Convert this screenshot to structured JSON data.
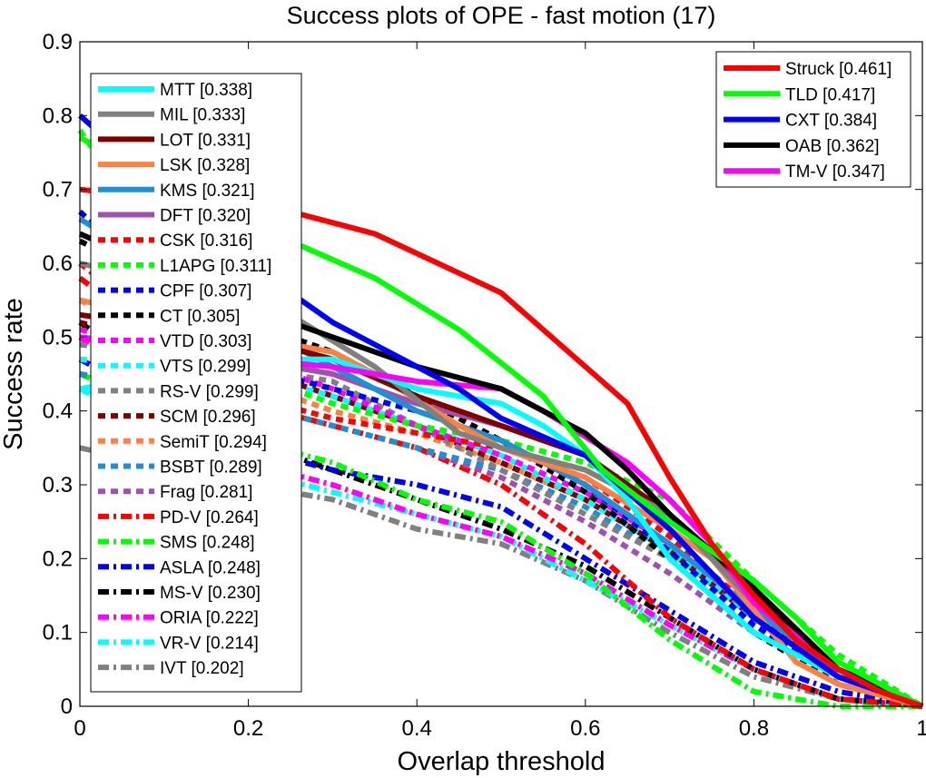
{
  "chart_data": {
    "type": "line",
    "title": "Success plots of OPE - fast motion (17)",
    "xlabel": "Overlap threshold",
    "ylabel": "Success rate",
    "xlim": [
      0,
      1
    ],
    "ylim": [
      0,
      0.9
    ],
    "x_ticks": [
      "0",
      "0.2",
      "0.4",
      "0.6",
      "0.8",
      "1"
    ],
    "y_ticks": [
      "0",
      "0.1",
      "0.2",
      "0.3",
      "0.4",
      "0.5",
      "0.6",
      "0.7",
      "0.8",
      "0.9"
    ],
    "grid": false,
    "legends": [
      {
        "placement": "top-right",
        "series": [
          "Struck [0.461]",
          "TLD [0.417]",
          "CXT [0.384]",
          "OAB [0.362]",
          "TM-V [0.347]"
        ]
      },
      {
        "placement": "left",
        "series": [
          "MTT [0.338]",
          "MIL [0.333]",
          "LOT [0.331]",
          "LSK [0.328]",
          "KMS [0.321]",
          "DFT [0.320]",
          "CSK [0.316]",
          "L1APG [0.311]",
          "CPF [0.307]",
          "CT [0.305]",
          "VTD [0.303]",
          "VTS [0.299]",
          "RS-V [0.299]",
          "SCM [0.296]",
          "SemiT [0.294]",
          "BSBT [0.289]",
          "Frag [0.281]",
          "PD-V [0.264]",
          "SMS [0.248]",
          "ASLA [0.248]",
          "MS-V [0.230]",
          "ORIA [0.222]",
          "VR-V [0.214]",
          "IVT [0.202]"
        ]
      }
    ],
    "series": [
      {
        "name": "Struck [0.461]",
        "color": "#ff0000",
        "style": "solid",
        "x": [
          0,
          0.25,
          0.35,
          0.5,
          0.6,
          0.65,
          0.7,
          0.75,
          0.8,
          0.85,
          0.9,
          0.95,
          1
        ],
        "y": [
          0.7,
          0.67,
          0.64,
          0.56,
          0.46,
          0.41,
          0.31,
          0.22,
          0.15,
          0.09,
          0.05,
          0.02,
          0
        ]
      },
      {
        "name": "TLD [0.417]",
        "color": "#00ff00",
        "style": "solid",
        "x": [
          0,
          0.25,
          0.35,
          0.45,
          0.55,
          0.62,
          0.7,
          0.75,
          0.8,
          0.85,
          0.9,
          0.95,
          1
        ],
        "y": [
          0.77,
          0.63,
          0.58,
          0.51,
          0.42,
          0.32,
          0.25,
          0.21,
          0.17,
          0.12,
          0.06,
          0.03,
          0
        ]
      },
      {
        "name": "CXT [0.384]",
        "color": "#0000ff",
        "style": "solid",
        "x": [
          0,
          0.2,
          0.3,
          0.35,
          0.45,
          0.5,
          0.6,
          0.7,
          0.8,
          0.9,
          1
        ],
        "y": [
          0.8,
          0.6,
          0.52,
          0.49,
          0.43,
          0.39,
          0.34,
          0.24,
          0.12,
          0.04,
          0
        ]
      },
      {
        "name": "OAB [0.362]",
        "color": "#000000",
        "style": "solid",
        "x": [
          0,
          0.2,
          0.3,
          0.4,
          0.5,
          0.6,
          0.65,
          0.7,
          0.8,
          0.9,
          1
        ],
        "y": [
          0.64,
          0.54,
          0.5,
          0.46,
          0.43,
          0.37,
          0.32,
          0.26,
          0.16,
          0.05,
          0
        ]
      },
      {
        "name": "TM-V [0.347]",
        "color": "#ff00ff",
        "style": "solid",
        "x": [
          0,
          0.2,
          0.3,
          0.4,
          0.5,
          0.55,
          0.65,
          0.7,
          0.75,
          0.8,
          0.9,
          1
        ],
        "y": [
          0.5,
          0.47,
          0.46,
          0.44,
          0.43,
          0.4,
          0.33,
          0.28,
          0.22,
          0.14,
          0.05,
          0
        ]
      },
      {
        "name": "MTT [0.338]",
        "color": "#00ffff",
        "style": "solid",
        "x": [
          0,
          0.2,
          0.3,
          0.4,
          0.5,
          0.55,
          0.6,
          0.65,
          0.7,
          0.8,
          0.9,
          1
        ],
        "y": [
          0.43,
          0.47,
          0.47,
          0.43,
          0.41,
          0.38,
          0.34,
          0.28,
          0.2,
          0.1,
          0.04,
          0
        ]
      },
      {
        "name": "MIL [0.333]",
        "color": "#808080",
        "style": "solid",
        "x": [
          0,
          0.15,
          0.25,
          0.35,
          0.45,
          0.5,
          0.6,
          0.65,
          0.7,
          0.8,
          0.9,
          1
        ],
        "y": [
          0.6,
          0.56,
          0.53,
          0.46,
          0.37,
          0.35,
          0.32,
          0.29,
          0.26,
          0.14,
          0.05,
          0
        ]
      },
      {
        "name": "LOT [0.331]",
        "color": "#800000",
        "style": "solid",
        "x": [
          0,
          0.2,
          0.3,
          0.4,
          0.5,
          0.6,
          0.7,
          0.8,
          0.85,
          0.9,
          1
        ],
        "y": [
          0.53,
          0.5,
          0.47,
          0.42,
          0.38,
          0.34,
          0.26,
          0.15,
          0.1,
          0.05,
          0
        ]
      },
      {
        "name": "LSK [0.328]",
        "color": "#ff8040",
        "style": "solid",
        "x": [
          0,
          0.2,
          0.3,
          0.35,
          0.45,
          0.5,
          0.6,
          0.7,
          0.75,
          0.8,
          0.85,
          0.9,
          1
        ],
        "y": [
          0.55,
          0.5,
          0.48,
          0.45,
          0.38,
          0.35,
          0.31,
          0.24,
          0.2,
          0.13,
          0.06,
          0.03,
          0
        ]
      },
      {
        "name": "KMS [0.321]",
        "color": "#1e90d8",
        "style": "solid",
        "x": [
          0,
          0.2,
          0.3,
          0.4,
          0.5,
          0.6,
          0.7,
          0.8,
          0.9,
          1
        ],
        "y": [
          0.66,
          0.52,
          0.46,
          0.4,
          0.36,
          0.3,
          0.22,
          0.13,
          0.05,
          0
        ]
      },
      {
        "name": "DFT [0.320]",
        "color": "#a050b0",
        "style": "solid",
        "x": [
          0,
          0.2,
          0.3,
          0.4,
          0.5,
          0.6,
          0.7,
          0.8,
          0.9,
          1
        ],
        "y": [
          0.5,
          0.47,
          0.45,
          0.41,
          0.38,
          0.34,
          0.26,
          0.14,
          0.04,
          0
        ]
      },
      {
        "name": "CSK [0.316]",
        "color": "#ff0000",
        "style": "dashed",
        "x": [
          0,
          0.2,
          0.3,
          0.4,
          0.5,
          0.6,
          0.7,
          0.8,
          0.9,
          1
        ],
        "y": [
          0.6,
          0.42,
          0.39,
          0.37,
          0.35,
          0.31,
          0.23,
          0.13,
          0.04,
          0
        ]
      },
      {
        "name": "L1APG [0.311]",
        "color": "#00ff00",
        "style": "dashed",
        "x": [
          0,
          0.2,
          0.3,
          0.4,
          0.5,
          0.6,
          0.7,
          0.8,
          0.9,
          1
        ],
        "y": [
          0.78,
          0.45,
          0.41,
          0.38,
          0.36,
          0.33,
          0.28,
          0.17,
          0.07,
          0
        ]
      },
      {
        "name": "CPF [0.307]",
        "color": "#0000ff",
        "style": "dashed",
        "x": [
          0,
          0.2,
          0.3,
          0.4,
          0.5,
          0.6,
          0.7,
          0.8,
          0.9,
          1
        ],
        "y": [
          0.67,
          0.46,
          0.43,
          0.4,
          0.36,
          0.3,
          0.21,
          0.11,
          0.04,
          0
        ]
      },
      {
        "name": "CT [0.305]",
        "color": "#000000",
        "style": "dashed",
        "x": [
          0,
          0.2,
          0.3,
          0.4,
          0.5,
          0.6,
          0.7,
          0.8,
          0.9,
          1
        ],
        "y": [
          0.63,
          0.52,
          0.48,
          0.42,
          0.36,
          0.29,
          0.2,
          0.1,
          0.03,
          0
        ]
      },
      {
        "name": "VTD [0.303]",
        "color": "#ff00ff",
        "style": "dashed",
        "x": [
          0,
          0.2,
          0.3,
          0.4,
          0.5,
          0.6,
          0.7,
          0.8,
          0.9,
          1
        ],
        "y": [
          0.51,
          0.47,
          0.43,
          0.38,
          0.34,
          0.29,
          0.22,
          0.13,
          0.05,
          0
        ]
      },
      {
        "name": "VTS [0.299]",
        "color": "#00ffff",
        "style": "dashed",
        "x": [
          0,
          0.2,
          0.3,
          0.4,
          0.5,
          0.6,
          0.7,
          0.8,
          0.9,
          1
        ],
        "y": [
          0.47,
          0.45,
          0.42,
          0.38,
          0.34,
          0.28,
          0.21,
          0.12,
          0.04,
          0
        ]
      },
      {
        "name": "RS-V [0.299]",
        "color": "#808080",
        "style": "dashed",
        "x": [
          0,
          0.2,
          0.3,
          0.4,
          0.5,
          0.6,
          0.7,
          0.8,
          0.9,
          1
        ],
        "y": [
          0.49,
          0.46,
          0.44,
          0.38,
          0.32,
          0.26,
          0.2,
          0.12,
          0.05,
          0
        ]
      },
      {
        "name": "SCM [0.296]",
        "color": "#800000",
        "style": "dashed",
        "x": [
          0,
          0.2,
          0.3,
          0.4,
          0.5,
          0.6,
          0.7,
          0.8,
          0.9,
          1
        ],
        "y": [
          0.52,
          0.46,
          0.42,
          0.38,
          0.33,
          0.28,
          0.21,
          0.12,
          0.04,
          0
        ]
      },
      {
        "name": "SemiT [0.294]",
        "color": "#ff8040",
        "style": "dashed",
        "x": [
          0,
          0.2,
          0.3,
          0.4,
          0.5,
          0.6,
          0.7,
          0.8,
          0.9,
          1
        ],
        "y": [
          0.55,
          0.44,
          0.4,
          0.37,
          0.33,
          0.28,
          0.21,
          0.12,
          0.04,
          0
        ]
      },
      {
        "name": "BSBT [0.289]",
        "color": "#1e90d8",
        "style": "dashed",
        "x": [
          0,
          0.2,
          0.3,
          0.4,
          0.5,
          0.6,
          0.7,
          0.8,
          0.9,
          1
        ],
        "y": [
          0.45,
          0.41,
          0.38,
          0.35,
          0.32,
          0.27,
          0.2,
          0.12,
          0.05,
          0
        ]
      },
      {
        "name": "Frag [0.281]",
        "color": "#a050b0",
        "style": "dashed",
        "x": [
          0,
          0.2,
          0.3,
          0.4,
          0.5,
          0.6,
          0.7,
          0.8,
          0.9,
          1
        ],
        "y": [
          0.45,
          0.41,
          0.38,
          0.35,
          0.31,
          0.25,
          0.18,
          0.1,
          0.04,
          0
        ]
      },
      {
        "name": "PD-V [0.264]",
        "color": "#ff0000",
        "style": "dashdot",
        "x": [
          0,
          0.2,
          0.3,
          0.4,
          0.5,
          0.6,
          0.7,
          0.8,
          0.9,
          1
        ],
        "y": [
          0.58,
          0.41,
          0.38,
          0.35,
          0.3,
          0.22,
          0.12,
          0.05,
          0.01,
          0
        ]
      },
      {
        "name": "SMS [0.248]",
        "color": "#00ff00",
        "style": "dashdot",
        "x": [
          0,
          0.2,
          0.3,
          0.4,
          0.5,
          0.6,
          0.7,
          0.8,
          0.9,
          1
        ],
        "y": [
          0.45,
          0.36,
          0.33,
          0.28,
          0.25,
          0.18,
          0.09,
          0.02,
          0.0,
          0
        ]
      },
      {
        "name": "ASLA [0.248]",
        "color": "#0000ff",
        "style": "dashdot",
        "x": [
          0,
          0.2,
          0.3,
          0.4,
          0.5,
          0.6,
          0.7,
          0.8,
          0.9,
          1
        ],
        "y": [
          0.47,
          0.35,
          0.32,
          0.3,
          0.27,
          0.2,
          0.13,
          0.06,
          0.02,
          0
        ]
      },
      {
        "name": "MS-V [0.230]",
        "color": "#000000",
        "style": "dashdot",
        "x": [
          0,
          0.2,
          0.3,
          0.4,
          0.5,
          0.6,
          0.7,
          0.8,
          0.9,
          1
        ],
        "y": [
          0.52,
          0.36,
          0.32,
          0.28,
          0.24,
          0.19,
          0.12,
          0.05,
          0.01,
          0
        ]
      },
      {
        "name": "ORIA [0.222]",
        "color": "#ff00ff",
        "style": "dashdot",
        "x": [
          0,
          0.2,
          0.3,
          0.4,
          0.5,
          0.6,
          0.7,
          0.8,
          0.9,
          1
        ],
        "y": [
          0.5,
          0.33,
          0.3,
          0.26,
          0.23,
          0.18,
          0.11,
          0.05,
          0.01,
          0
        ]
      },
      {
        "name": "VR-V [0.214]",
        "color": "#00ffff",
        "style": "dashdot",
        "x": [
          0,
          0.2,
          0.3,
          0.4,
          0.5,
          0.6,
          0.7,
          0.8,
          0.9,
          1
        ],
        "y": [
          0.43,
          0.32,
          0.29,
          0.26,
          0.23,
          0.17,
          0.11,
          0.05,
          0.01,
          0
        ]
      },
      {
        "name": "IVT [0.202]",
        "color": "#808080",
        "style": "dashdot",
        "x": [
          0,
          0.2,
          0.3,
          0.4,
          0.5,
          0.6,
          0.7,
          0.8,
          0.9,
          1
        ],
        "y": [
          0.35,
          0.3,
          0.28,
          0.24,
          0.22,
          0.17,
          0.1,
          0.04,
          0.01,
          0
        ]
      }
    ]
  }
}
